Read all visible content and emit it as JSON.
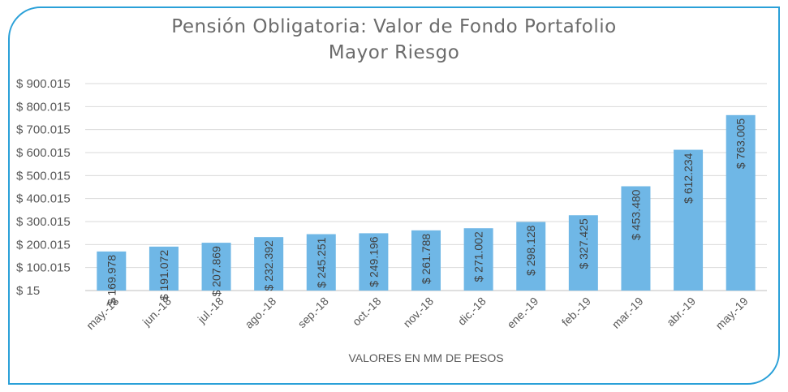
{
  "chart_data": {
    "type": "bar",
    "title": "Pensión Obligatoria: Valor de Fondo Portafolio",
    "subtitle": "Mayor Riesgo",
    "xlabel": "VALORES EN MM DE PESOS",
    "ylabel": "",
    "ylim": [
      15,
      900015
    ],
    "yticks": [
      "$ 15",
      "$ 100.015",
      "$ 200.015",
      "$ 300.015",
      "$ 400.015",
      "$ 500.015",
      "$ 600.015",
      "$ 700.015",
      "$ 800.015",
      "$ 900.015"
    ],
    "ytick_values": [
      15,
      100015,
      200015,
      300015,
      400015,
      500015,
      600015,
      700015,
      800015,
      900015
    ],
    "categories": [
      "may.-18",
      "jun.-18",
      "jul.-18",
      "ago.-18",
      "sep.-18",
      "oct.-18",
      "nov.-18",
      "dic.-18",
      "ene.-19",
      "feb.-19",
      "mar.-19",
      "abr.-19",
      "may.-19"
    ],
    "values": [
      169978,
      191072,
      207869,
      232392,
      245251,
      249196,
      261788,
      271002,
      298128,
      327425,
      453480,
      612234,
      763005
    ],
    "data_labels": [
      "$ 169.978",
      "$ 191.072",
      "$ 207.869",
      "$ 232.392",
      "$ 245.251",
      "$ 249.196",
      "$ 261.788",
      "$ 271.002",
      "$ 298.128",
      "$ 327.425",
      "$ 453.480",
      "$ 612.234",
      "$ 763.005"
    ],
    "grid": true,
    "legend": "none",
    "bar_color": "#6fb7e6"
  },
  "colors": {
    "frame_border": "#2aa0d8",
    "gridline": "#d9d9d9",
    "text": "#595959"
  }
}
